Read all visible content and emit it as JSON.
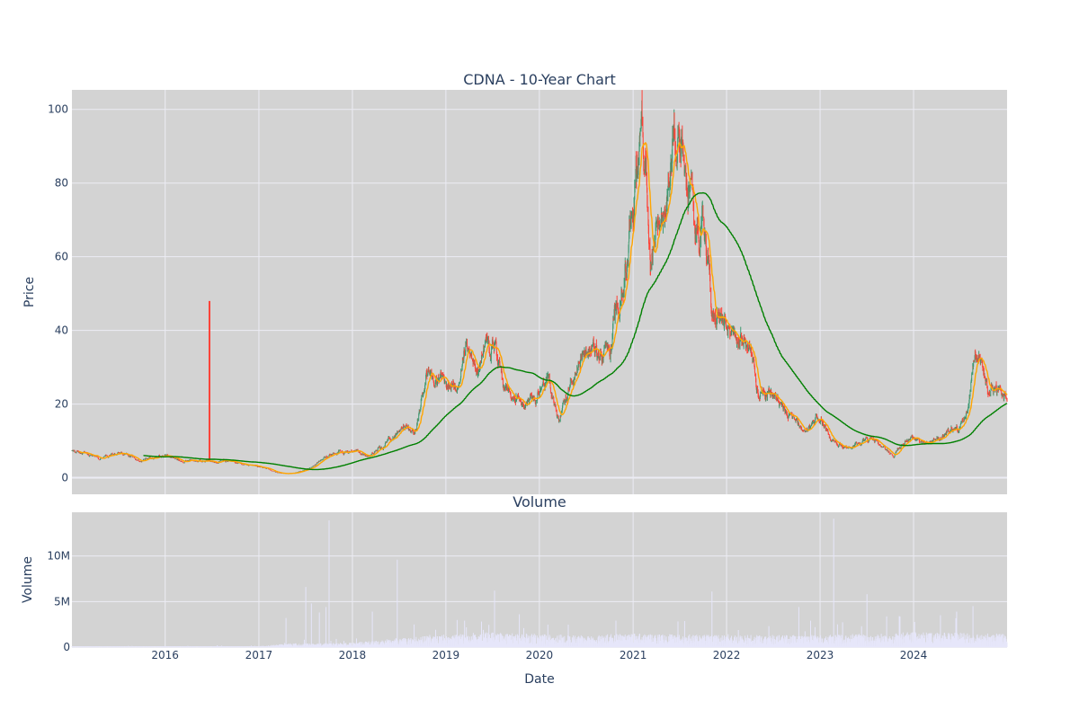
{
  "colors": {
    "plot_bg": "#d3d3d3",
    "grid": "#ececf4",
    "text": "#2a3f5f",
    "candle_up": "#3d9970",
    "candle_down": "#ff4136",
    "ma_short": "#ffa500",
    "ma_long": "#008000",
    "volume_bar": "#e6e6fa"
  },
  "chart_data": [
    {
      "type": "candlestick",
      "title": "CDNA - 10-Year Chart",
      "xlabel": "",
      "ylabel": "Price",
      "xlim": [
        "2015-01-02",
        "2024-12-31"
      ],
      "ylim": [
        -4.5,
        105.3
      ],
      "yticks": [
        0,
        20,
        40,
        60,
        80,
        100
      ],
      "xticks": [
        "2016",
        "2017",
        "2018",
        "2019",
        "2020",
        "2021",
        "2022",
        "2023",
        "2024"
      ],
      "grid": true,
      "legend": "none",
      "price_keypoints": [
        [
          "2015-01-02",
          7.3
        ],
        [
          "2015-03-01",
          6.3
        ],
        [
          "2015-05-01",
          5.0
        ],
        [
          "2015-06-15",
          6.8
        ],
        [
          "2015-08-01",
          6.5
        ],
        [
          "2015-09-15",
          4.6
        ],
        [
          "2015-11-01",
          5.2
        ],
        [
          "2016-01-01",
          6.2
        ],
        [
          "2016-03-01",
          4.8
        ],
        [
          "2016-06-01",
          4.4
        ],
        [
          "2016-08-15",
          4.8
        ],
        [
          "2016-10-01",
          4.0
        ],
        [
          "2017-01-01",
          2.9
        ],
        [
          "2017-04-01",
          1.1
        ],
        [
          "2017-06-01",
          1.4
        ],
        [
          "2017-08-01",
          3.0
        ],
        [
          "2017-09-15",
          5.8
        ],
        [
          "2017-11-15",
          7.0
        ],
        [
          "2018-01-15",
          7.0
        ],
        [
          "2018-03-01",
          5.8
        ],
        [
          "2018-05-01",
          9.0
        ],
        [
          "2018-06-15",
          12.0
        ],
        [
          "2018-07-15",
          15.0
        ],
        [
          "2018-09-01",
          12.5
        ],
        [
          "2018-10-15",
          27.0
        ],
        [
          "2018-12-01",
          26.0
        ],
        [
          "2019-01-01",
          26.0
        ],
        [
          "2019-02-15",
          25.0
        ],
        [
          "2019-03-20",
          37.0
        ],
        [
          "2019-04-15",
          29.0
        ],
        [
          "2019-06-01",
          34.0
        ],
        [
          "2019-07-10",
          39.0
        ],
        [
          "2019-08-15",
          25.0
        ],
        [
          "2019-09-15",
          23.0
        ],
        [
          "2019-11-01",
          20.0
        ],
        [
          "2019-12-15",
          22.0
        ],
        [
          "2020-02-01",
          27.0
        ],
        [
          "2020-03-20",
          15.0
        ],
        [
          "2020-04-15",
          22.0
        ],
        [
          "2020-06-01",
          33.0
        ],
        [
          "2020-07-15",
          35.0
        ],
        [
          "2020-09-01",
          33.0
        ],
        [
          "2020-10-01",
          33.0
        ],
        [
          "2020-10-20",
          44.0
        ],
        [
          "2020-11-10",
          50.0
        ],
        [
          "2020-12-10",
          60.0
        ],
        [
          "2021-01-01",
          73.0
        ],
        [
          "2021-02-05",
          93.0
        ],
        [
          "2021-03-10",
          62.0
        ],
        [
          "2021-04-10",
          76.0
        ],
        [
          "2021-05-01",
          65.0
        ],
        [
          "2021-06-10",
          91.0
        ],
        [
          "2021-07-10",
          83.0
        ],
        [
          "2021-08-15",
          76.0
        ],
        [
          "2021-09-15",
          66.0
        ],
        [
          "2021-10-10",
          69.0
        ],
        [
          "2021-11-05",
          47.0
        ],
        [
          "2021-12-10",
          44.0
        ],
        [
          "2022-01-15",
          41.0
        ],
        [
          "2022-03-01",
          38.0
        ],
        [
          "2022-04-10",
          33.0
        ],
        [
          "2022-05-10",
          24.0
        ],
        [
          "2022-07-01",
          23.0
        ],
        [
          "2022-09-01",
          17.0
        ],
        [
          "2022-11-01",
          13.0
        ],
        [
          "2023-01-01",
          16.0
        ],
        [
          "2023-02-20",
          9.5
        ],
        [
          "2023-05-01",
          8.0
        ],
        [
          "2023-07-15",
          11.0
        ],
        [
          "2023-09-01",
          8.5
        ],
        [
          "2023-10-15",
          5.5
        ],
        [
          "2023-11-15",
          9.5
        ],
        [
          "2024-01-01",
          11.0
        ],
        [
          "2024-02-15",
          9.0
        ],
        [
          "2024-04-01",
          10.0
        ],
        [
          "2024-05-15",
          13.0
        ],
        [
          "2024-07-01",
          14.0
        ],
        [
          "2024-08-01",
          19.0
        ],
        [
          "2024-08-25",
          33.0
        ],
        [
          "2024-09-25",
          29.0
        ],
        [
          "2024-10-20",
          23.0
        ],
        [
          "2024-11-20",
          24.0
        ],
        [
          "2024-12-31",
          21.0
        ]
      ],
      "spike": {
        "date": "2016-06-22",
        "high": 48.0,
        "low": 4.5
      },
      "moving_averages": [
        {
          "color_key": "ma_short",
          "window": 20
        },
        {
          "color_key": "ma_long",
          "window": 200
        }
      ]
    },
    {
      "type": "bar",
      "title": "Volume",
      "xlabel": "Date",
      "ylabel": "Volume",
      "xlim": [
        "2015-01-02",
        "2024-12-31"
      ],
      "ylim": [
        0,
        14800000
      ],
      "yticks": [
        0,
        5000000,
        10000000
      ],
      "ytick_labels": [
        "0",
        "5M",
        "10M"
      ],
      "xticks": [
        "2016",
        "2017",
        "2018",
        "2019",
        "2020",
        "2021",
        "2022",
        "2023",
        "2024"
      ],
      "grid": true,
      "volume_baseline": [
        [
          "2015-01-02",
          50000
        ],
        [
          "2016-12-31",
          60000
        ],
        [
          "2017-05-01",
          250000
        ],
        [
          "2018-01-01",
          300000
        ],
        [
          "2018-09-01",
          700000
        ],
        [
          "2019-06-01",
          1000000
        ],
        [
          "2020-06-01",
          800000
        ],
        [
          "2021-01-01",
          900000
        ],
        [
          "2022-01-01",
          800000
        ],
        [
          "2023-01-01",
          800000
        ],
        [
          "2024-01-01",
          1000000
        ],
        [
          "2024-12-31",
          900000
        ]
      ],
      "volume_spikes": [
        [
          "2017-04-15",
          3200000
        ],
        [
          "2017-07-01",
          6600000
        ],
        [
          "2017-07-25",
          4800000
        ],
        [
          "2017-08-25",
          3800000
        ],
        [
          "2017-09-20",
          4400000
        ],
        [
          "2017-10-02",
          13900000
        ],
        [
          "2018-03-20",
          3900000
        ],
        [
          "2018-06-25",
          9600000
        ],
        [
          "2019-03-15",
          2900000
        ],
        [
          "2019-05-20",
          2800000
        ],
        [
          "2019-07-10",
          6200000
        ],
        [
          "2019-10-15",
          3600000
        ],
        [
          "2020-10-25",
          2900000
        ],
        [
          "2021-11-05",
          6100000
        ],
        [
          "2022-06-15",
          2300000
        ],
        [
          "2022-10-10",
          4400000
        ],
        [
          "2022-11-25",
          2900000
        ],
        [
          "2023-02-23",
          14100000
        ],
        [
          "2023-03-10",
          2500000
        ],
        [
          "2023-07-03",
          5800000
        ],
        [
          "2023-11-05",
          3400000
        ],
        [
          "2024-04-15",
          3500000
        ],
        [
          "2024-06-15",
          3900000
        ],
        [
          "2024-08-20",
          4500000
        ]
      ]
    }
  ]
}
